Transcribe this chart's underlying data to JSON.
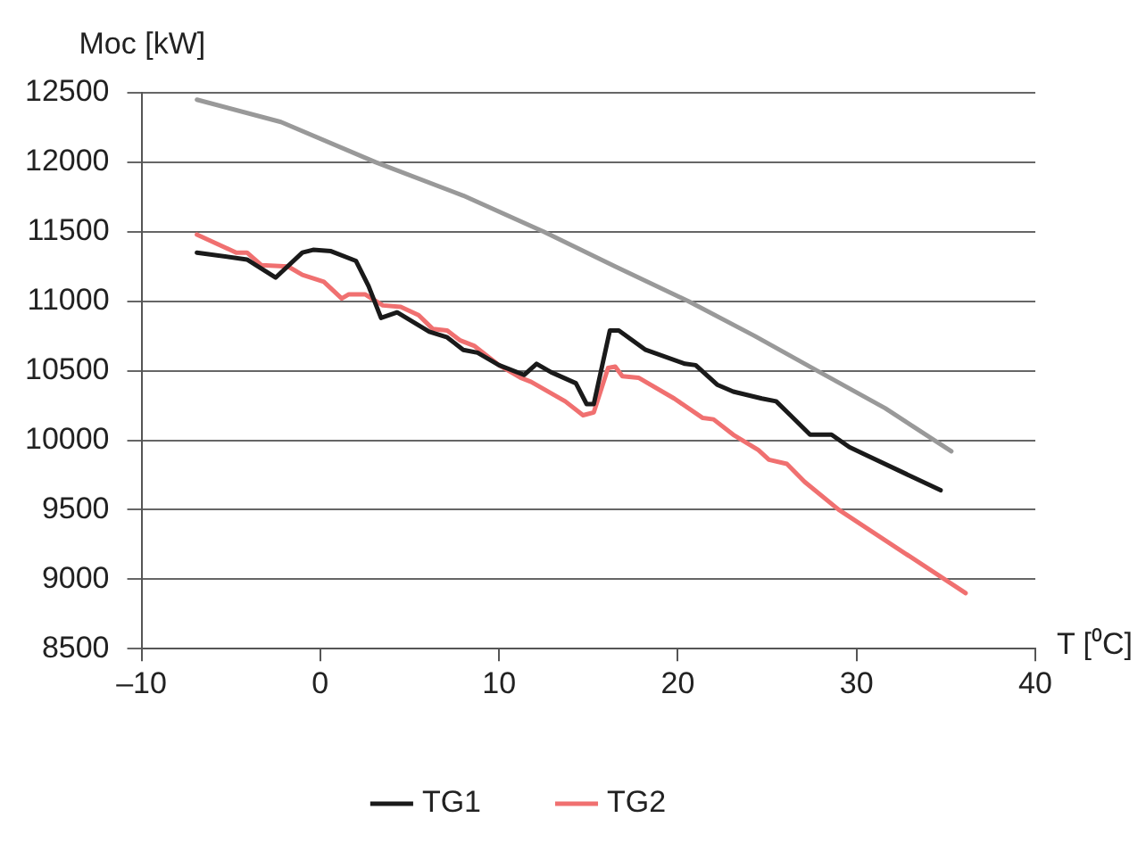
{
  "chart_data": {
    "type": "line",
    "xlabel": "T [⁰C]",
    "ylabel": "Moc [kW]",
    "xlim": [
      -10,
      40
    ],
    "xticks": [
      {
        "value": -10,
        "label": "–10"
      },
      0,
      10,
      20,
      30,
      40
    ],
    "ylim": [
      8500,
      12500
    ],
    "yticks": [
      8500,
      9000,
      9500,
      10000,
      10500,
      11000,
      11500,
      12000,
      12500
    ],
    "grid": "y",
    "legend": "bottom",
    "marker": "none",
    "line_style": "solid",
    "series": [
      {
        "name": "TG1",
        "color": "#1a1a1a",
        "x": [
          -6.9,
          -4.1,
          -2.5,
          -1.0,
          -0.4,
          0.6,
          2.0,
          2.7,
          3.4,
          4.3,
          6.1,
          7.1,
          8.0,
          8.8,
          10.0,
          11.4,
          12.1,
          12.9,
          14.3,
          14.9,
          15.3,
          16.2,
          16.7,
          18.2,
          20.4,
          21.0,
          22.2,
          23.1,
          24.7,
          25.5,
          26.3,
          27.4,
          28.6,
          29.6,
          34.7
        ],
        "values": [
          11350,
          11300,
          11170,
          11350,
          11370,
          11360,
          11290,
          11110,
          10880,
          10920,
          10780,
          10740,
          10650,
          10630,
          10540,
          10470,
          10550,
          10490,
          10410,
          10260,
          10260,
          10790,
          10790,
          10650,
          10550,
          10540,
          10400,
          10350,
          10300,
          10280,
          10180,
          10040,
          10040,
          9950,
          9640
        ]
      },
      {
        "name": "TG2",
        "color": "#f07070",
        "x": [
          -6.9,
          -4.7,
          -4.1,
          -3.3,
          -1.8,
          -1.0,
          0.2,
          1.2,
          1.6,
          2.5,
          3.5,
          4.5,
          5.5,
          6.3,
          7.1,
          7.8,
          8.6,
          10.0,
          11.2,
          11.8,
          13.7,
          14.7,
          15.3,
          16.1,
          16.5,
          16.9,
          17.8,
          19.8,
          21.4,
          22.0,
          23.1,
          24.5,
          25.1,
          26.1,
          27.1,
          29.0,
          36.1
        ],
        "values": [
          11480,
          11350,
          11350,
          11260,
          11250,
          11190,
          11140,
          11020,
          11050,
          11050,
          10970,
          10960,
          10900,
          10800,
          10790,
          10720,
          10680,
          10540,
          10450,
          10420,
          10280,
          10180,
          10200,
          10520,
          10530,
          10460,
          10450,
          10300,
          10160,
          10150,
          10040,
          9930,
          9860,
          9830,
          9700,
          9500,
          8900
        ]
      },
      {
        "color": "#999999",
        "x": [
          -6.9,
          -2.2,
          3.1,
          8.0,
          12.5,
          16.5,
          20.6,
          24.3,
          27.8,
          31.6,
          35.3
        ],
        "values": [
          12450,
          12290,
          12000,
          11760,
          11500,
          11250,
          11000,
          10750,
          10500,
          10230,
          9920
        ]
      }
    ]
  }
}
